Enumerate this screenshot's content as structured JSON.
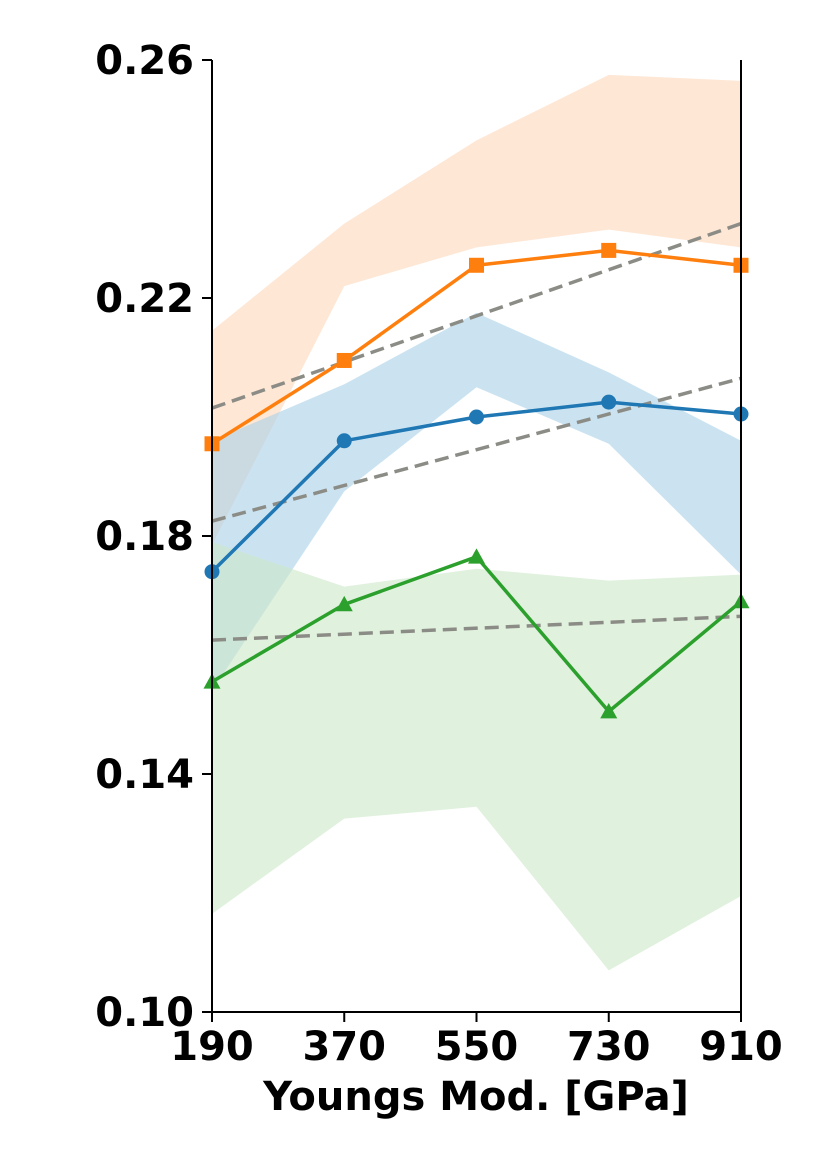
{
  "chart_data": {
    "type": "line",
    "title": "",
    "xlabel": "Youngs Mod. [GPa]",
    "ylabel": "",
    "x": [
      190,
      370,
      550,
      730,
      910
    ],
    "x_tick_labels": [
      "190",
      "370",
      "550",
      "730",
      "910"
    ],
    "ylim": [
      0.1,
      0.26
    ],
    "y_ticks": [
      0.1,
      0.14,
      0.18,
      0.22,
      0.26
    ],
    "y_tick_labels": [
      "0.10",
      "0.14",
      "0.18",
      "0.22",
      "0.26"
    ],
    "grid": false,
    "series": [
      {
        "key": "blue",
        "color": "#1f77b4",
        "marker": "circle",
        "values": [
          0.174,
          0.196,
          0.2,
          0.2025,
          0.2005
        ],
        "band_upper": [
          0.196,
          0.2055,
          0.2175,
          0.2075,
          0.196
        ],
        "band_lower": [
          0.154,
          0.1875,
          0.205,
          0.1955,
          0.1735
        ],
        "band_color": "#a8d1e7",
        "trend": [
          0.1825,
          0.2065
        ]
      },
      {
        "key": "orange",
        "color": "#ff7f0e",
        "marker": "square",
        "values": [
          0.1955,
          0.2095,
          0.2255,
          0.228,
          0.2255
        ],
        "band_upper": [
          0.2145,
          0.2325,
          0.2465,
          0.2575,
          0.2565
        ],
        "band_lower": [
          0.1785,
          0.222,
          0.2285,
          0.2315,
          0.2285
        ],
        "band_color": "#fdd7b9",
        "trend": [
          0.2015,
          0.2325
        ]
      },
      {
        "key": "green",
        "color": "#2ca02c",
        "marker": "triangle",
        "values": [
          0.1555,
          0.1685,
          0.1765,
          0.1505,
          0.169
        ],
        "band_upper": [
          0.179,
          0.1715,
          0.1745,
          0.1725,
          0.1735
        ],
        "band_lower": [
          0.1165,
          0.1325,
          0.1345,
          0.107,
          0.1195
        ],
        "band_color": "#cce8c8",
        "trend": [
          0.1625,
          0.1665
        ]
      }
    ],
    "trend_color": "#8c8c86"
  }
}
